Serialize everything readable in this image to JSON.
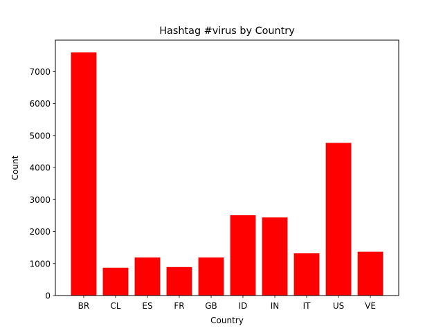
{
  "chart_data": {
    "type": "bar",
    "title": "Hashtag #virus by Country",
    "xlabel": "Country",
    "ylabel": "Count",
    "categories": [
      "BR",
      "CL",
      "ES",
      "FR",
      "GB",
      "ID",
      "IN",
      "IT",
      "US",
      "VE"
    ],
    "values": [
      7600,
      870,
      1190,
      890,
      1190,
      2510,
      2440,
      1320,
      4770,
      1370
    ],
    "ylim": [
      0,
      7980
    ],
    "yticks": [
      0,
      1000,
      2000,
      3000,
      4000,
      5000,
      6000,
      7000
    ],
    "grid": false,
    "legend": "none",
    "bar_color": "#ff0000"
  }
}
